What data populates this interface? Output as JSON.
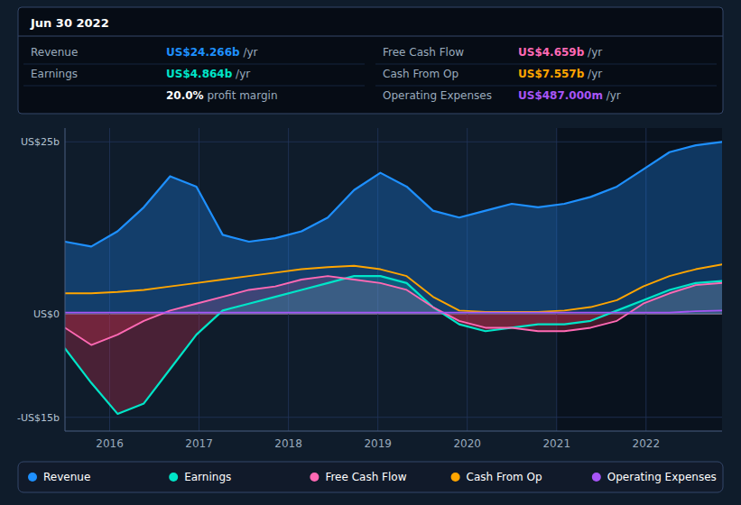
{
  "chart_data": {
    "type": "line",
    "x": [
      2015.5,
      2015.794,
      2016.088,
      2016.382,
      2016.676,
      2016.97,
      2017.264,
      2017.558,
      2017.852,
      2018.146,
      2018.44,
      2018.734,
      2019.028,
      2019.322,
      2019.616,
      2019.91,
      2020.204,
      2020.498,
      2020.792,
      2021.086,
      2021.38,
      2021.674,
      2021.968,
      2022.262,
      2022.556,
      2022.85
    ],
    "xlim": [
      2015.5,
      2022.85
    ],
    "xticks": [
      2016,
      2017,
      2018,
      2019,
      2020,
      2021,
      2022
    ],
    "ylim": [
      -17,
      27
    ],
    "yticks": [
      {
        "value": 25,
        "label": "US$25b"
      },
      {
        "value": 0,
        "label": "US$0"
      },
      {
        "value": -15,
        "label": "-US$15b"
      }
    ],
    "grid": true,
    "legend": "bottom",
    "highlight_x": [
      2021.0,
      2022.85
    ],
    "series": [
      {
        "name": "Revenue",
        "color": "#1e90ff",
        "type": "area",
        "values": [
          10.5,
          9.8,
          12.0,
          15.5,
          20.0,
          18.5,
          11.5,
          10.5,
          11.0,
          12.0,
          14.0,
          18.0,
          20.5,
          18.5,
          15.0,
          14.0,
          15.0,
          16.0,
          15.5,
          16.0,
          17.0,
          18.5,
          21.0,
          23.5,
          24.5,
          25.0
        ]
      },
      {
        "name": "Earnings",
        "color": "#00e5c8",
        "type": "area",
        "values": [
          -5.0,
          -10.0,
          -14.5,
          -13.0,
          -8.0,
          -3.0,
          0.5,
          1.5,
          2.5,
          3.5,
          4.5,
          5.5,
          5.5,
          4.5,
          1.0,
          -1.5,
          -2.5,
          -2.0,
          -1.5,
          -1.5,
          -1.0,
          0.5,
          2.0,
          3.5,
          4.5,
          4.8
        ]
      },
      {
        "name": "Free Cash Flow",
        "color": "#ff69b4",
        "type": "area",
        "values": [
          -2.0,
          -4.5,
          -3.0,
          -1.0,
          0.5,
          1.5,
          2.5,
          3.5,
          4.0,
          5.0,
          5.5,
          5.0,
          4.5,
          3.5,
          1.0,
          -1.0,
          -2.0,
          -2.0,
          -2.5,
          -2.5,
          -2.0,
          -1.0,
          1.5,
          3.0,
          4.2,
          4.5
        ]
      },
      {
        "name": "Cash From Op",
        "color": "#ffa500",
        "type": "line",
        "values": [
          3.0,
          3.0,
          3.2,
          3.5,
          4.0,
          4.5,
          5.0,
          5.5,
          6.0,
          6.5,
          6.8,
          7.0,
          6.5,
          5.5,
          2.5,
          0.5,
          0.3,
          0.3,
          0.3,
          0.5,
          1.0,
          2.0,
          4.0,
          5.5,
          6.5,
          7.2
        ]
      },
      {
        "name": "Operating Expenses",
        "color": "#a855f7",
        "type": "line",
        "values": [
          0.2,
          0.2,
          0.2,
          0.2,
          0.2,
          0.2,
          0.2,
          0.2,
          0.2,
          0.2,
          0.2,
          0.2,
          0.2,
          0.2,
          0.2,
          0.2,
          0.2,
          0.2,
          0.2,
          0.2,
          0.2,
          0.2,
          0.2,
          0.2,
          0.4,
          0.5
        ]
      }
    ],
    "annotation": {
      "title": "Jun 30 2022",
      "rows": [
        {
          "label": "Revenue",
          "value": "US$24.266b",
          "suffix": " /yr",
          "color": "#1e90ff"
        },
        {
          "label": "Earnings",
          "value": "US$4.864b",
          "suffix": " /yr",
          "color": "#00e5c8"
        },
        {
          "value": "20.0%",
          "suffix": " profit margin",
          "color": "#ffffff"
        },
        {
          "label": "Free Cash Flow",
          "value": "US$4.659b",
          "suffix": " /yr",
          "color": "#ff69b4"
        },
        {
          "label": "Cash From Op",
          "value": "US$7.557b",
          "suffix": " /yr",
          "color": "#ffa500"
        },
        {
          "label": "Operating Expenses",
          "value": "US$487.000m",
          "suffix": " /yr",
          "color": "#a855f7"
        }
      ]
    }
  }
}
